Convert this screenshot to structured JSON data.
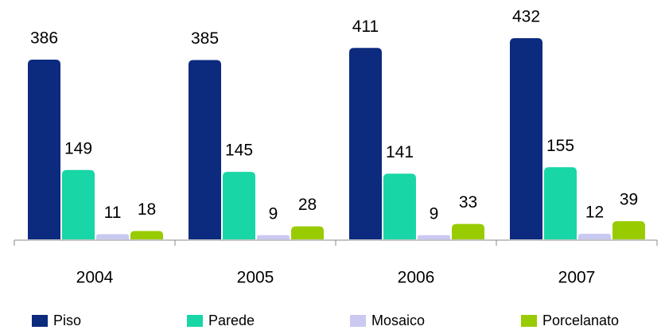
{
  "chart_data": {
    "type": "bar",
    "categories": [
      "2004",
      "2005",
      "2006",
      "2007"
    ],
    "series": [
      {
        "name": "Piso",
        "color": "#0c2a7e",
        "values": [
          386,
          385,
          411,
          432
        ]
      },
      {
        "name": "Parede",
        "color": "#19d6a6",
        "values": [
          149,
          145,
          141,
          155
        ]
      },
      {
        "name": "Mosaico",
        "color": "#c9c9f2",
        "values": [
          11,
          9,
          9,
          12
        ]
      },
      {
        "name": "Porcelanato",
        "color": "#99cc00",
        "values": [
          18,
          28,
          33,
          39
        ]
      }
    ],
    "legend": "bottom"
  }
}
